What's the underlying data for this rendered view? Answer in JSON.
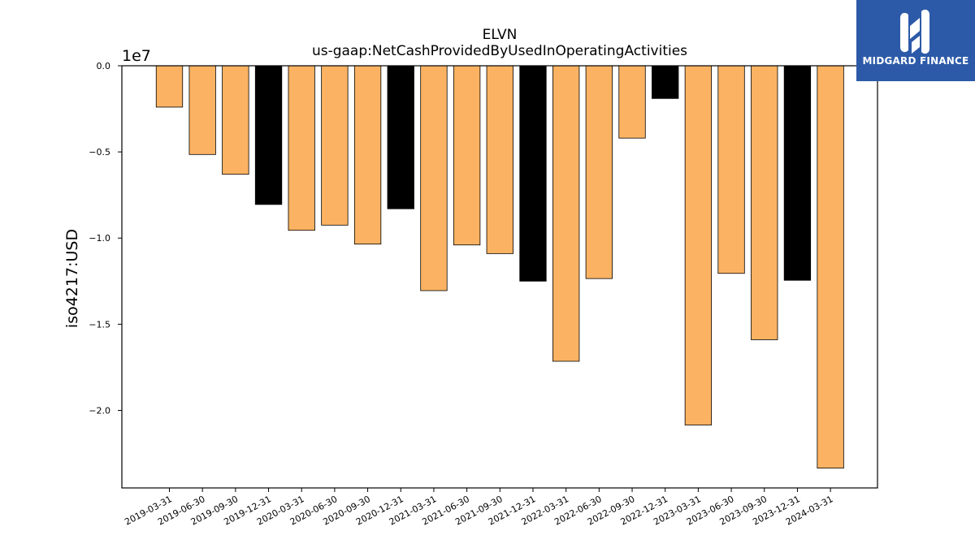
{
  "chart_data": {
    "type": "bar",
    "title": "ELVN",
    "subtitle": "us-gaap:NetCashProvidedByUsedInOperatingActivities",
    "ylabel": "iso4217:USD",
    "offset_label": "1e7",
    "ylim": [
      -24500000,
      0
    ],
    "yticks": [
      0,
      -5000000,
      -10000000,
      -15000000,
      -20000000
    ],
    "ytick_labels": [
      "0.0",
      "−0.5",
      "−1.0",
      "−1.5",
      "−2.0"
    ],
    "categories": [
      "2019-03-31",
      "2019-06-30",
      "2019-09-30",
      "2019-12-31",
      "2020-03-31",
      "2020-06-30",
      "2020-09-30",
      "2020-12-31",
      "2021-03-31",
      "2021-06-30",
      "2021-09-30",
      "2021-12-31",
      "2022-03-31",
      "2022-06-30",
      "2022-09-30",
      "2022-12-31",
      "2023-03-31",
      "2023-06-30",
      "2023-09-30",
      "2023-12-31",
      "2024-03-31"
    ],
    "values": [
      -2400000,
      -5150000,
      -6300000,
      -8050000,
      -9550000,
      -9250000,
      -10350000,
      -8300000,
      -13050000,
      -10400000,
      -10900000,
      -12500000,
      -17150000,
      -12350000,
      -4200000,
      -1900000,
      -20850000,
      -12050000,
      -15900000,
      -12450000,
      -23350000
    ],
    "bar_colors": [
      "#fbb363",
      "#fbb363",
      "#fbb363",
      "#000000",
      "#fbb363",
      "#fbb363",
      "#fbb363",
      "#000000",
      "#fbb363",
      "#fbb363",
      "#fbb363",
      "#000000",
      "#fbb363",
      "#fbb363",
      "#fbb363",
      "#000000",
      "#fbb363",
      "#fbb363",
      "#fbb363",
      "#000000",
      "#fbb363"
    ],
    "grid": false,
    "legend": "none"
  },
  "logo": {
    "text": "MIDGARD FINANCE",
    "background": "#2d5aa8",
    "icon": "midgard-logo-icon"
  }
}
